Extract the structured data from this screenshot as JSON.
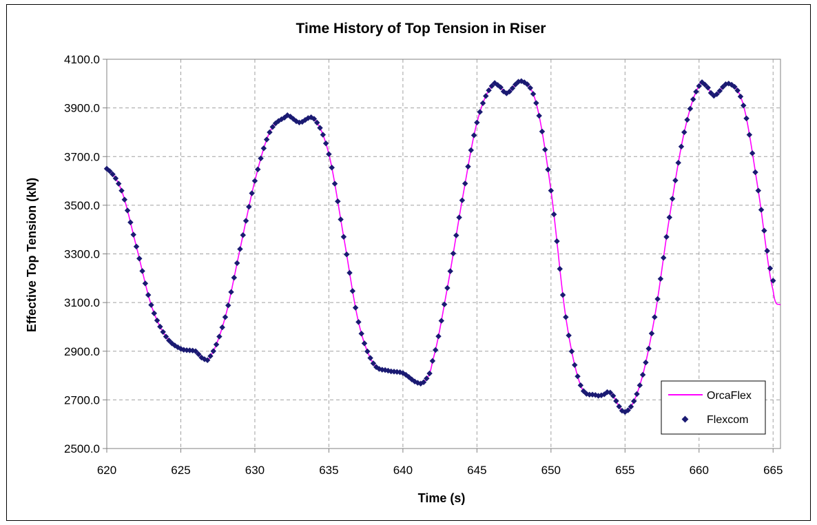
{
  "chart_data": {
    "type": "line",
    "title": "Time History of Top Tension in Riser",
    "xlabel": "Time (s)",
    "ylabel": "Effective Top Tension (kN)",
    "xlim": [
      620,
      665.5
    ],
    "ylim": [
      2500,
      4100
    ],
    "xticks": [
      "620",
      "625",
      "630",
      "635",
      "640",
      "645",
      "650",
      "655",
      "660",
      "665"
    ],
    "yticks": [
      "2500.0",
      "2700.0",
      "2900.0",
      "3100.0",
      "3300.0",
      "3500.0",
      "3700.0",
      "3900.0",
      "4100.0"
    ],
    "grid": true,
    "legend_position": "bottom-right",
    "colors": {
      "OrcaFlex": "#ff00ff",
      "Flexcom": "#1a1a72"
    },
    "series": [
      {
        "name": "OrcaFlex",
        "style": "line",
        "x": [
          620,
          621,
          622,
          623,
          624,
          625,
          626,
          626.5,
          627,
          628,
          629,
          630,
          631,
          632,
          632.2,
          633,
          634,
          635,
          636,
          637,
          638,
          639,
          640,
          641,
          641.5,
          642,
          643,
          644,
          645,
          646,
          646.5,
          647,
          648,
          649,
          650,
          651,
          652,
          653,
          653.5,
          654,
          655,
          656,
          657,
          658,
          659,
          660,
          660.5,
          661,
          662,
          663,
          664,
          665,
          665.5
        ],
        "y": [
          3650,
          3560,
          3330,
          3090,
          2960,
          2910,
          2900,
          2870,
          2880,
          3040,
          3320,
          3600,
          3800,
          3860,
          3870,
          3840,
          3855,
          3710,
          3370,
          3020,
          2850,
          2820,
          2810,
          2770,
          2780,
          2860,
          3160,
          3520,
          3840,
          3990,
          3990,
          3960,
          4010,
          3920,
          3560,
          3040,
          2760,
          2720,
          2720,
          2730,
          2650,
          2760,
          3040,
          3450,
          3800,
          3990,
          3990,
          3950,
          4000,
          3910,
          3560,
          3150,
          3090
        ]
      },
      {
        "name": "Flexcom",
        "style": "markers",
        "x": [
          620,
          621,
          622,
          623,
          624,
          625,
          626,
          626.5,
          627,
          628,
          629,
          630,
          631,
          632,
          632.2,
          633,
          634,
          635,
          636,
          637,
          638,
          639,
          640,
          641,
          641.5,
          642,
          643,
          644,
          645,
          646,
          646.5,
          647,
          648,
          649,
          650,
          651,
          652,
          653,
          653.5,
          654,
          655,
          656,
          657,
          658,
          659,
          660,
          660.5,
          661,
          662,
          663,
          664,
          665
        ],
        "y": [
          3650,
          3560,
          3330,
          3090,
          2960,
          2910,
          2900,
          2870,
          2880,
          3040,
          3320,
          3600,
          3800,
          3860,
          3870,
          3840,
          3855,
          3710,
          3370,
          3020,
          2850,
          2820,
          2810,
          2770,
          2780,
          2860,
          3160,
          3520,
          3840,
          3990,
          3990,
          3960,
          4010,
          3920,
          3560,
          3040,
          2760,
          2720,
          2720,
          2730,
          2650,
          2760,
          3040,
          3450,
          3800,
          3990,
          3990,
          3950,
          4000,
          3910,
          3560,
          3190
        ]
      }
    ]
  }
}
